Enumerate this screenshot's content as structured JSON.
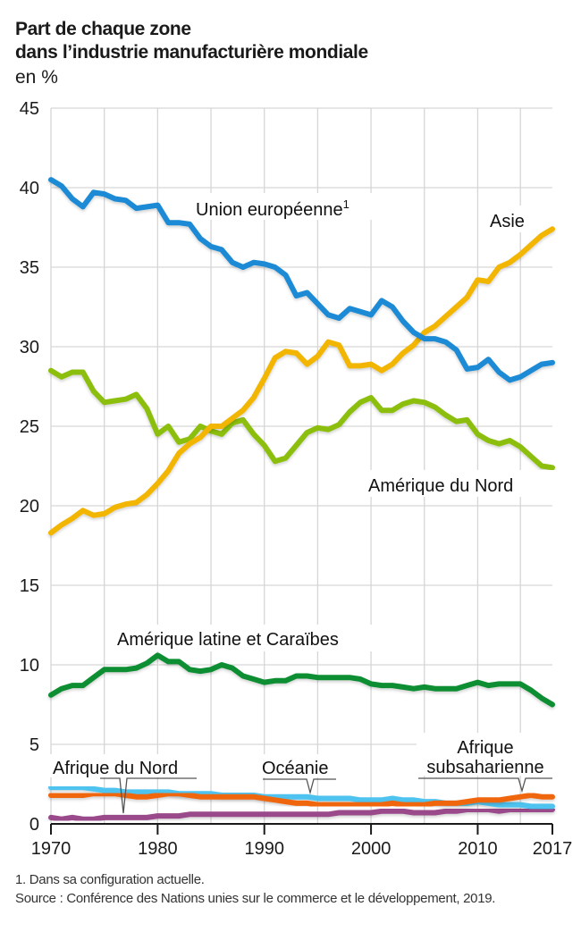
{
  "header": {
    "title_line1": "Part de chaque zone",
    "title_line2": "dans l’industrie manufacturière mondiale",
    "unit": "en %"
  },
  "footer": {
    "note": "1. Dans sa configuration actuelle.",
    "source": "Source : Conférence des Nations unies sur le commerce et le développement, 2019."
  },
  "chart_data": {
    "type": "line",
    "title": "Part de chaque zone dans l’industrie manufacturière mondiale",
    "xlabel": "",
    "ylabel": "en %",
    "xlim": [
      1970,
      2017
    ],
    "ylim": [
      0,
      45
    ],
    "grid": true,
    "x_ticks": [
      1970,
      1980,
      1990,
      2000,
      2010,
      2017
    ],
    "x_tick_labels": [
      "1970",
      "1980",
      "1990",
      "2000",
      "2010",
      "2017"
    ],
    "x_gridlines": [
      1970,
      1975,
      1980,
      1985,
      1990,
      1995,
      2000,
      2005,
      2010,
      2014
    ],
    "y_ticks": [
      0,
      5,
      10,
      15,
      20,
      25,
      30,
      35,
      40,
      45
    ],
    "y_tick_labels": [
      "0",
      "5",
      "10",
      "15",
      "20",
      "25",
      "30",
      "35",
      "40",
      "45"
    ],
    "x": [
      1970,
      1971,
      1972,
      1973,
      1974,
      1975,
      1976,
      1977,
      1978,
      1979,
      1980,
      1981,
      1982,
      1983,
      1984,
      1985,
      1986,
      1987,
      1988,
      1989,
      1990,
      1991,
      1992,
      1993,
      1994,
      1995,
      1996,
      1997,
      1998,
      1999,
      2000,
      2001,
      2002,
      2003,
      2004,
      2005,
      2006,
      2007,
      2008,
      2009,
      2010,
      2011,
      2012,
      2013,
      2014,
      2015,
      2016,
      2017
    ],
    "series": [
      {
        "name": "Union européenne",
        "label": "Union européenne",
        "label_sup": "1",
        "color": "#1a8ad4",
        "values": [
          40.5,
          40.1,
          39.3,
          38.8,
          39.7,
          39.6,
          39.3,
          39.2,
          38.7,
          38.8,
          38.9,
          37.8,
          37.8,
          37.7,
          36.8,
          36.3,
          36.1,
          35.3,
          35.0,
          35.3,
          35.2,
          35.0,
          34.5,
          33.2,
          33.4,
          32.7,
          32.0,
          31.8,
          32.4,
          32.2,
          32.0,
          32.9,
          32.5,
          31.6,
          30.9,
          30.5,
          30.5,
          30.3,
          29.8,
          28.6,
          28.7,
          29.2,
          28.4,
          27.9,
          28.1,
          28.5,
          28.9,
          29.0
        ]
      },
      {
        "name": "Asie",
        "label": "Asie",
        "color": "#f2b500",
        "values": [
          18.3,
          18.8,
          19.2,
          19.7,
          19.4,
          19.5,
          19.9,
          20.1,
          20.2,
          20.7,
          21.4,
          22.2,
          23.3,
          23.9,
          24.3,
          25.0,
          25.0,
          25.5,
          26.0,
          26.8,
          28.0,
          29.3,
          29.7,
          29.6,
          28.9,
          29.4,
          30.3,
          30.1,
          28.8,
          28.8,
          28.9,
          28.5,
          28.9,
          29.6,
          30.1,
          30.9,
          31.3,
          31.9,
          32.5,
          33.1,
          34.2,
          34.1,
          35.0,
          35.3,
          35.8,
          36.4,
          37.0,
          37.4
        ]
      },
      {
        "name": "Amérique du Nord",
        "label": "Amérique du Nord",
        "color": "#8cbf0f",
        "values": [
          28.5,
          28.1,
          28.4,
          28.4,
          27.2,
          26.5,
          26.6,
          26.7,
          27.0,
          26.1,
          24.5,
          25.0,
          24.0,
          24.2,
          25.0,
          24.7,
          24.5,
          25.2,
          25.4,
          24.5,
          23.8,
          22.8,
          23.0,
          23.8,
          24.6,
          24.9,
          24.8,
          25.1,
          25.9,
          26.5,
          26.8,
          26.0,
          26.0,
          26.4,
          26.6,
          26.5,
          26.2,
          25.7,
          25.3,
          25.4,
          24.5,
          24.1,
          23.9,
          24.1,
          23.7,
          23.1,
          22.5,
          22.4
        ]
      },
      {
        "name": "Amérique latine et Caraïbes",
        "label": "Amérique latine et Caraïbes",
        "color": "#0e8e33",
        "values": [
          8.1,
          8.5,
          8.7,
          8.7,
          9.2,
          9.7,
          9.7,
          9.7,
          9.8,
          10.1,
          10.6,
          10.2,
          10.2,
          9.7,
          9.6,
          9.7,
          10.0,
          9.8,
          9.3,
          9.1,
          8.9,
          9.0,
          9.0,
          9.3,
          9.3,
          9.2,
          9.2,
          9.2,
          9.2,
          9.1,
          8.8,
          8.7,
          8.7,
          8.6,
          8.5,
          8.6,
          8.5,
          8.5,
          8.5,
          8.7,
          8.9,
          8.7,
          8.8,
          8.8,
          8.8,
          8.4,
          7.9,
          7.5
        ]
      },
      {
        "name": "Océanie",
        "label": "Océanie",
        "color": "#4fc3ef",
        "values": [
          2.3,
          2.3,
          2.3,
          2.3,
          2.2,
          2.1,
          2.1,
          2.0,
          2.0,
          2.0,
          2.0,
          2.0,
          1.9,
          1.9,
          1.9,
          1.9,
          1.8,
          1.8,
          1.8,
          1.8,
          1.7,
          1.7,
          1.7,
          1.7,
          1.7,
          1.6,
          1.6,
          1.6,
          1.6,
          1.5,
          1.5,
          1.5,
          1.6,
          1.5,
          1.5,
          1.4,
          1.4,
          1.3,
          1.3,
          1.3,
          1.4,
          1.3,
          1.2,
          1.2,
          1.2,
          1.1,
          1.1,
          1.1
        ]
      },
      {
        "name": "Afrique subsaharienne",
        "label": "Afrique subsaharienne",
        "color": "#f06611",
        "values": [
          1.8,
          1.8,
          1.8,
          1.8,
          1.9,
          1.9,
          1.9,
          1.8,
          1.7,
          1.7,
          1.8,
          1.9,
          1.9,
          1.8,
          1.7,
          1.7,
          1.7,
          1.7,
          1.7,
          1.7,
          1.6,
          1.5,
          1.4,
          1.3,
          1.3,
          1.2,
          1.2,
          1.2,
          1.2,
          1.2,
          1.2,
          1.2,
          1.3,
          1.2,
          1.2,
          1.2,
          1.3,
          1.3,
          1.3,
          1.4,
          1.5,
          1.5,
          1.5,
          1.6,
          1.7,
          1.8,
          1.7,
          1.7
        ]
      },
      {
        "name": "Afrique du Nord",
        "label": "Afrique du Nord",
        "color": "#9a4a8a",
        "values": [
          0.4,
          0.3,
          0.4,
          0.3,
          0.3,
          0.4,
          0.4,
          0.4,
          0.4,
          0.4,
          0.5,
          0.5,
          0.5,
          0.6,
          0.6,
          0.6,
          0.6,
          0.6,
          0.6,
          0.6,
          0.6,
          0.6,
          0.6,
          0.6,
          0.6,
          0.6,
          0.6,
          0.7,
          0.7,
          0.7,
          0.7,
          0.8,
          0.8,
          0.8,
          0.7,
          0.7,
          0.7,
          0.8,
          0.8,
          0.9,
          0.9,
          0.9,
          0.8,
          0.9,
          0.9,
          0.9,
          0.9,
          0.9
        ]
      }
    ],
    "annotations": [
      {
        "text": "Union européenne",
        "sup": "1",
        "series": "Union européenne"
      },
      {
        "text": "Asie",
        "series": "Asie"
      },
      {
        "text": "Amérique du Nord",
        "series": "Amérique du Nord"
      },
      {
        "text": "Amérique latine et Caraïbes",
        "series": "Amérique latine et Caraïbes"
      },
      {
        "text": "Afrique du Nord",
        "series": "Afrique du Nord",
        "pointer_year": 1977
      },
      {
        "text": "Océanie",
        "series": "Océanie",
        "pointer_year": 1994
      },
      {
        "text_line1": "Afrique",
        "text_line2": "subsaharienne",
        "series": "Afrique subsaharienne",
        "pointer_year": 2014
      }
    ]
  }
}
